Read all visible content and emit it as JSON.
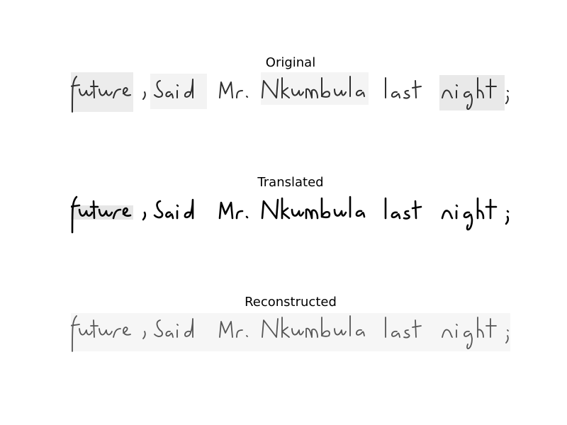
{
  "panels": [
    {
      "title": "Original",
      "text": "future , said Mr. Nkumbula last night ;"
    },
    {
      "title": "Translated",
      "text": "future , said Mr. Nkumbula last night ;"
    },
    {
      "title": "Reconstructed",
      "text": "future , said Mr. Nkumbula last night ;"
    }
  ],
  "icons": {
    "handwriting": "handwriting-image"
  },
  "colors": {
    "original_ink": "#2f2f2f",
    "translated_ink": "#000000",
    "reconstructed_ink": "#555555",
    "original_bg": "#eeeeee",
    "reconstructed_bg": "#f5f5f5"
  }
}
